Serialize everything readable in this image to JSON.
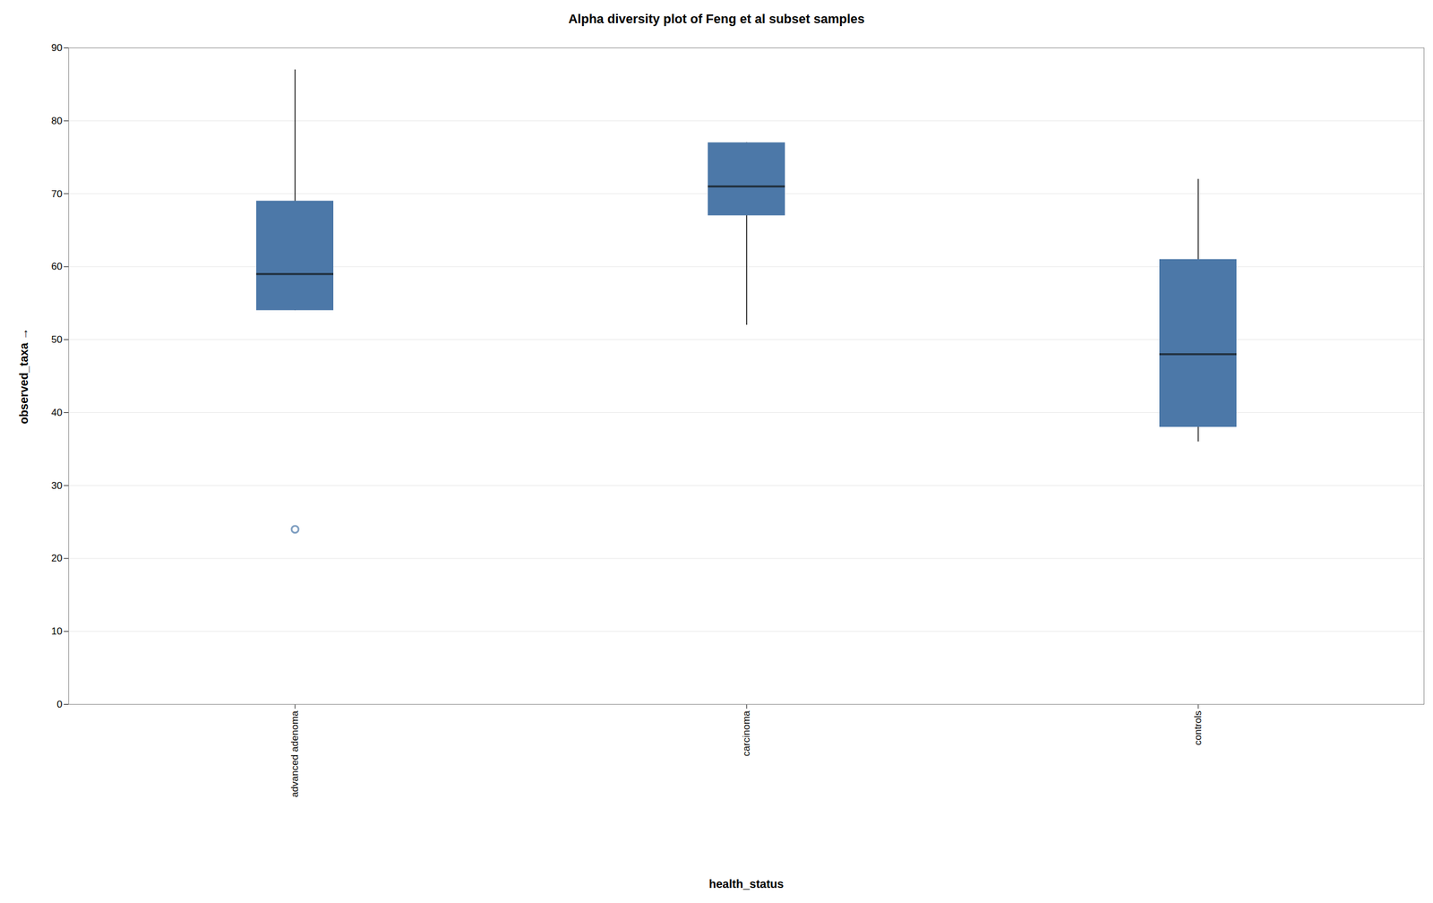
{
  "chart_data": {
    "type": "box",
    "title": "Alpha diversity plot of Feng et al subset samples",
    "x_label": "health_status",
    "y_label": "observed_taxa",
    "categories": [
      "advanced adenoma",
      "carcinoma",
      "controls"
    ],
    "min": [
      54,
      52,
      36
    ],
    "q1": [
      54,
      67,
      38
    ],
    "median": [
      59,
      71,
      48
    ],
    "q3": [
      69,
      77,
      61
    ],
    "max": [
      87,
      77,
      72
    ],
    "outliers": [
      [
        24
      ],
      [],
      []
    ],
    "color": "#4c78a8",
    "ylim": [
      0,
      90
    ],
    "yticks": [
      0,
      10,
      20,
      30,
      40,
      50,
      60,
      70,
      80,
      90
    ],
    "grid": true
  }
}
